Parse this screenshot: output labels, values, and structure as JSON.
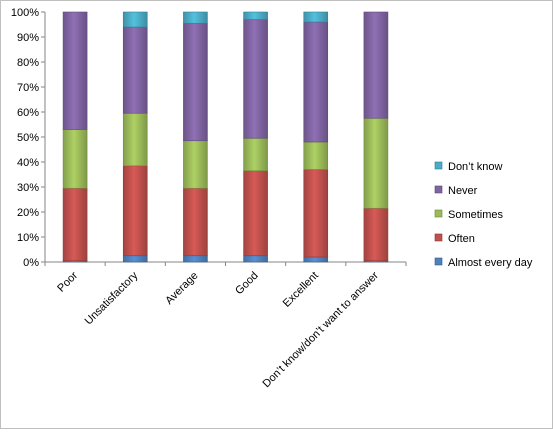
{
  "colors": {
    "Almost every day": "#4f81bd",
    "Often": "#c0504d",
    "Sometimes": "#9bbb59",
    "Never": "#8064a2",
    "Don't know": "#4bacc6"
  },
  "chart_data": {
    "type": "bar",
    "stacked": true,
    "percent_stacked": true,
    "categories": [
      "Poor",
      "Unsatisfactory",
      "Average",
      "Good",
      "Excellent",
      "Don’t know/don’t want to answer"
    ],
    "series": [
      {
        "name": "Almost every day",
        "values": [
          0.5,
          2.5,
          2.5,
          2.5,
          2.0,
          0.5
        ]
      },
      {
        "name": "Often",
        "values": [
          29.0,
          36.0,
          27.0,
          34.0,
          35.0,
          21.0
        ]
      },
      {
        "name": "Sometimes",
        "values": [
          23.5,
          21.0,
          19.0,
          13.0,
          11.0,
          36.0
        ]
      },
      {
        "name": "Never",
        "values": [
          47.0,
          34.5,
          47.0,
          47.5,
          48.0,
          42.5
        ]
      },
      {
        "name": "Don't know",
        "values": [
          0.0,
          6.0,
          4.5,
          3.0,
          4.0,
          0.0
        ]
      }
    ],
    "legend_labels": [
      "Don’t know",
      "Never",
      "Sometimes",
      "Often",
      "Almost every day"
    ],
    "ylim": [
      0,
      100
    ],
    "yticks": [
      "0%",
      "10%",
      "20%",
      "30%",
      "40%",
      "50%",
      "60%",
      "70%",
      "80%",
      "90%",
      "100%"
    ],
    "grid": false,
    "legend_position": "right"
  }
}
